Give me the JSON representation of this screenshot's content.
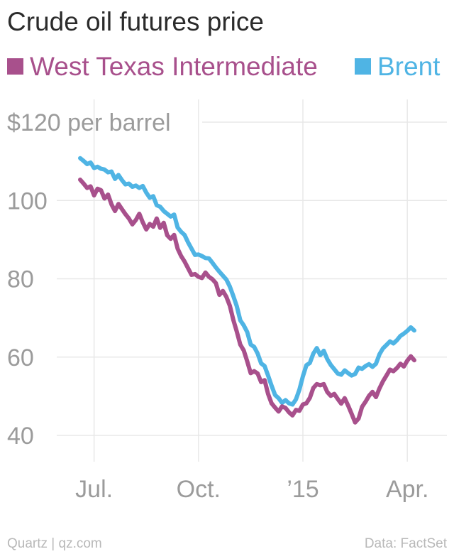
{
  "chart_data": {
    "type": "line",
    "title": "Crude oil futures price",
    "ylabel": "",
    "y_first_tick_label": "$120 per barrel",
    "ylim": [
      33,
      125
    ],
    "yticks": [
      40,
      60,
      80,
      100,
      120
    ],
    "xlim": [
      0,
      96
    ],
    "xticks": [
      {
        "x": 4,
        "label": "Jul."
      },
      {
        "x": 34,
        "label": "Oct."
      },
      {
        "x": 64,
        "label": "’15"
      },
      {
        "x": 94,
        "label": "Apr."
      }
    ],
    "legend_placement": "top",
    "series": [
      {
        "name": "West Texas Intermediate",
        "color": "#a8508c",
        "points": [
          [
            0,
            105.3
          ],
          [
            1,
            104.3
          ],
          [
            2,
            103.2
          ],
          [
            3,
            103.6
          ],
          [
            4,
            101.3
          ],
          [
            5,
            103.0
          ],
          [
            6,
            102.6
          ],
          [
            7,
            100.5
          ],
          [
            8,
            101.5
          ],
          [
            9,
            99.0
          ],
          [
            10,
            97.3
          ],
          [
            11,
            99.1
          ],
          [
            12,
            97.8
          ],
          [
            13,
            96.5
          ],
          [
            14,
            95.4
          ],
          [
            15,
            93.9
          ],
          [
            16,
            95.0
          ],
          [
            17,
            96.6
          ],
          [
            18,
            94.4
          ],
          [
            19,
            92.6
          ],
          [
            20,
            94.0
          ],
          [
            21,
            93.3
          ],
          [
            22,
            95.4
          ],
          [
            23,
            93.0
          ],
          [
            24,
            94.3
          ],
          [
            25,
            91.1
          ],
          [
            26,
            90.2
          ],
          [
            27,
            91.2
          ],
          [
            28,
            87.7
          ],
          [
            29,
            85.8
          ],
          [
            30,
            84.4
          ],
          [
            31,
            82.7
          ],
          [
            32,
            81.0
          ],
          [
            33,
            81.2
          ],
          [
            34,
            80.5
          ],
          [
            35,
            80.2
          ],
          [
            36,
            81.6
          ],
          [
            37,
            80.5
          ],
          [
            38,
            79.9
          ],
          [
            39,
            78.9
          ],
          [
            40,
            75.9
          ],
          [
            41,
            76.9
          ],
          [
            42,
            75.4
          ],
          [
            43,
            73.1
          ],
          [
            44,
            69.5
          ],
          [
            45,
            66.5
          ],
          [
            46,
            63.2
          ],
          [
            47,
            61.7
          ],
          [
            48,
            58.9
          ],
          [
            49,
            55.9
          ],
          [
            50,
            56.4
          ],
          [
            51,
            55.8
          ],
          [
            52,
            53.6
          ],
          [
            53,
            54.1
          ],
          [
            54,
            50.6
          ],
          [
            55,
            48.2
          ],
          [
            56,
            47.1
          ],
          [
            57,
            46.1
          ],
          [
            58,
            47.4
          ],
          [
            59,
            47.0
          ],
          [
            60,
            45.9
          ],
          [
            61,
            45.1
          ],
          [
            62,
            46.5
          ],
          [
            63,
            46.3
          ],
          [
            64,
            47.9
          ],
          [
            65,
            48.2
          ],
          [
            66,
            49.6
          ],
          [
            67,
            52.1
          ],
          [
            68,
            53.1
          ],
          [
            69,
            52.8
          ],
          [
            70,
            53.1
          ],
          [
            71,
            51.1
          ],
          [
            72,
            50.1
          ],
          [
            73,
            50.6
          ],
          [
            74,
            49.3
          ],
          [
            75,
            48.1
          ],
          [
            76,
            49.5
          ],
          [
            77,
            47.6
          ],
          [
            78,
            45.5
          ],
          [
            79,
            43.3
          ],
          [
            80,
            44.3
          ],
          [
            81,
            47.3
          ],
          [
            82,
            48.6
          ],
          [
            83,
            50.1
          ],
          [
            84,
            51.1
          ],
          [
            85,
            49.8
          ],
          [
            86,
            52.0
          ],
          [
            87,
            53.8
          ],
          [
            88,
            55.3
          ],
          [
            89,
            56.8
          ],
          [
            90,
            56.4
          ],
          [
            91,
            57.2
          ],
          [
            92,
            58.3
          ],
          [
            93,
            57.6
          ],
          [
            94,
            59.1
          ],
          [
            95,
            60.2
          ],
          [
            96,
            59.2
          ]
        ]
      },
      {
        "name": "Brent",
        "color": "#4fb4e4",
        "points": [
          [
            0,
            110.8
          ],
          [
            1,
            110.1
          ],
          [
            2,
            109.3
          ],
          [
            3,
            109.7
          ],
          [
            4,
            108.3
          ],
          [
            5,
            108.6
          ],
          [
            6,
            108.1
          ],
          [
            7,
            107.9
          ],
          [
            8,
            107.2
          ],
          [
            9,
            107.4
          ],
          [
            10,
            105.5
          ],
          [
            11,
            106.5
          ],
          [
            12,
            105.2
          ],
          [
            13,
            104.1
          ],
          [
            14,
            104.3
          ],
          [
            15,
            103.5
          ],
          [
            16,
            103.8
          ],
          [
            17,
            103.2
          ],
          [
            18,
            103.7
          ],
          [
            19,
            102.0
          ],
          [
            20,
            100.7
          ],
          [
            21,
            101.1
          ],
          [
            22,
            98.8
          ],
          [
            23,
            98.4
          ],
          [
            24,
            97.3
          ],
          [
            25,
            96.6
          ],
          [
            26,
            95.9
          ],
          [
            27,
            96.4
          ],
          [
            28,
            93.1
          ],
          [
            29,
            92.0
          ],
          [
            30,
            91.2
          ],
          [
            31,
            89.3
          ],
          [
            32,
            87.7
          ],
          [
            33,
            86.1
          ],
          [
            34,
            86.2
          ],
          [
            35,
            85.8
          ],
          [
            36,
            85.3
          ],
          [
            37,
            85.2
          ],
          [
            38,
            84.1
          ],
          [
            39,
            82.9
          ],
          [
            40,
            81.8
          ],
          [
            41,
            80.8
          ],
          [
            42,
            79.8
          ],
          [
            43,
            78.0
          ],
          [
            44,
            75.6
          ],
          [
            45,
            73.0
          ],
          [
            46,
            69.4
          ],
          [
            47,
            68.1
          ],
          [
            48,
            66.4
          ],
          [
            49,
            63.2
          ],
          [
            50,
            62.6
          ],
          [
            51,
            60.9
          ],
          [
            52,
            58.4
          ],
          [
            53,
            57.7
          ],
          [
            54,
            55.3
          ],
          [
            55,
            52.7
          ],
          [
            56,
            50.3
          ],
          [
            57,
            49.5
          ],
          [
            58,
            48.3
          ],
          [
            59,
            49.0
          ],
          [
            60,
            48.2
          ],
          [
            61,
            47.9
          ],
          [
            62,
            49.2
          ],
          [
            63,
            51.7
          ],
          [
            64,
            55.1
          ],
          [
            65,
            57.9
          ],
          [
            66,
            58.5
          ],
          [
            67,
            60.9
          ],
          [
            68,
            62.3
          ],
          [
            69,
            60.5
          ],
          [
            70,
            61.6
          ],
          [
            71,
            59.5
          ],
          [
            72,
            58.0
          ],
          [
            73,
            56.9
          ],
          [
            74,
            55.8
          ],
          [
            75,
            55.5
          ],
          [
            76,
            56.6
          ],
          [
            77,
            55.9
          ],
          [
            78,
            55.3
          ],
          [
            79,
            55.7
          ],
          [
            80,
            57.3
          ],
          [
            81,
            57.0
          ],
          [
            82,
            57.7
          ],
          [
            83,
            58.2
          ],
          [
            84,
            57.5
          ],
          [
            85,
            58.3
          ],
          [
            86,
            60.7
          ],
          [
            87,
            62.2
          ],
          [
            88,
            63.1
          ],
          [
            89,
            64.0
          ],
          [
            90,
            63.5
          ],
          [
            91,
            64.3
          ],
          [
            92,
            65.4
          ],
          [
            93,
            66.0
          ],
          [
            94,
            66.7
          ],
          [
            95,
            67.6
          ],
          [
            96,
            66.8
          ]
        ]
      }
    ]
  },
  "footer": {
    "source_left": "Quartz | qz.com",
    "source_right": "Data: FactSet"
  }
}
